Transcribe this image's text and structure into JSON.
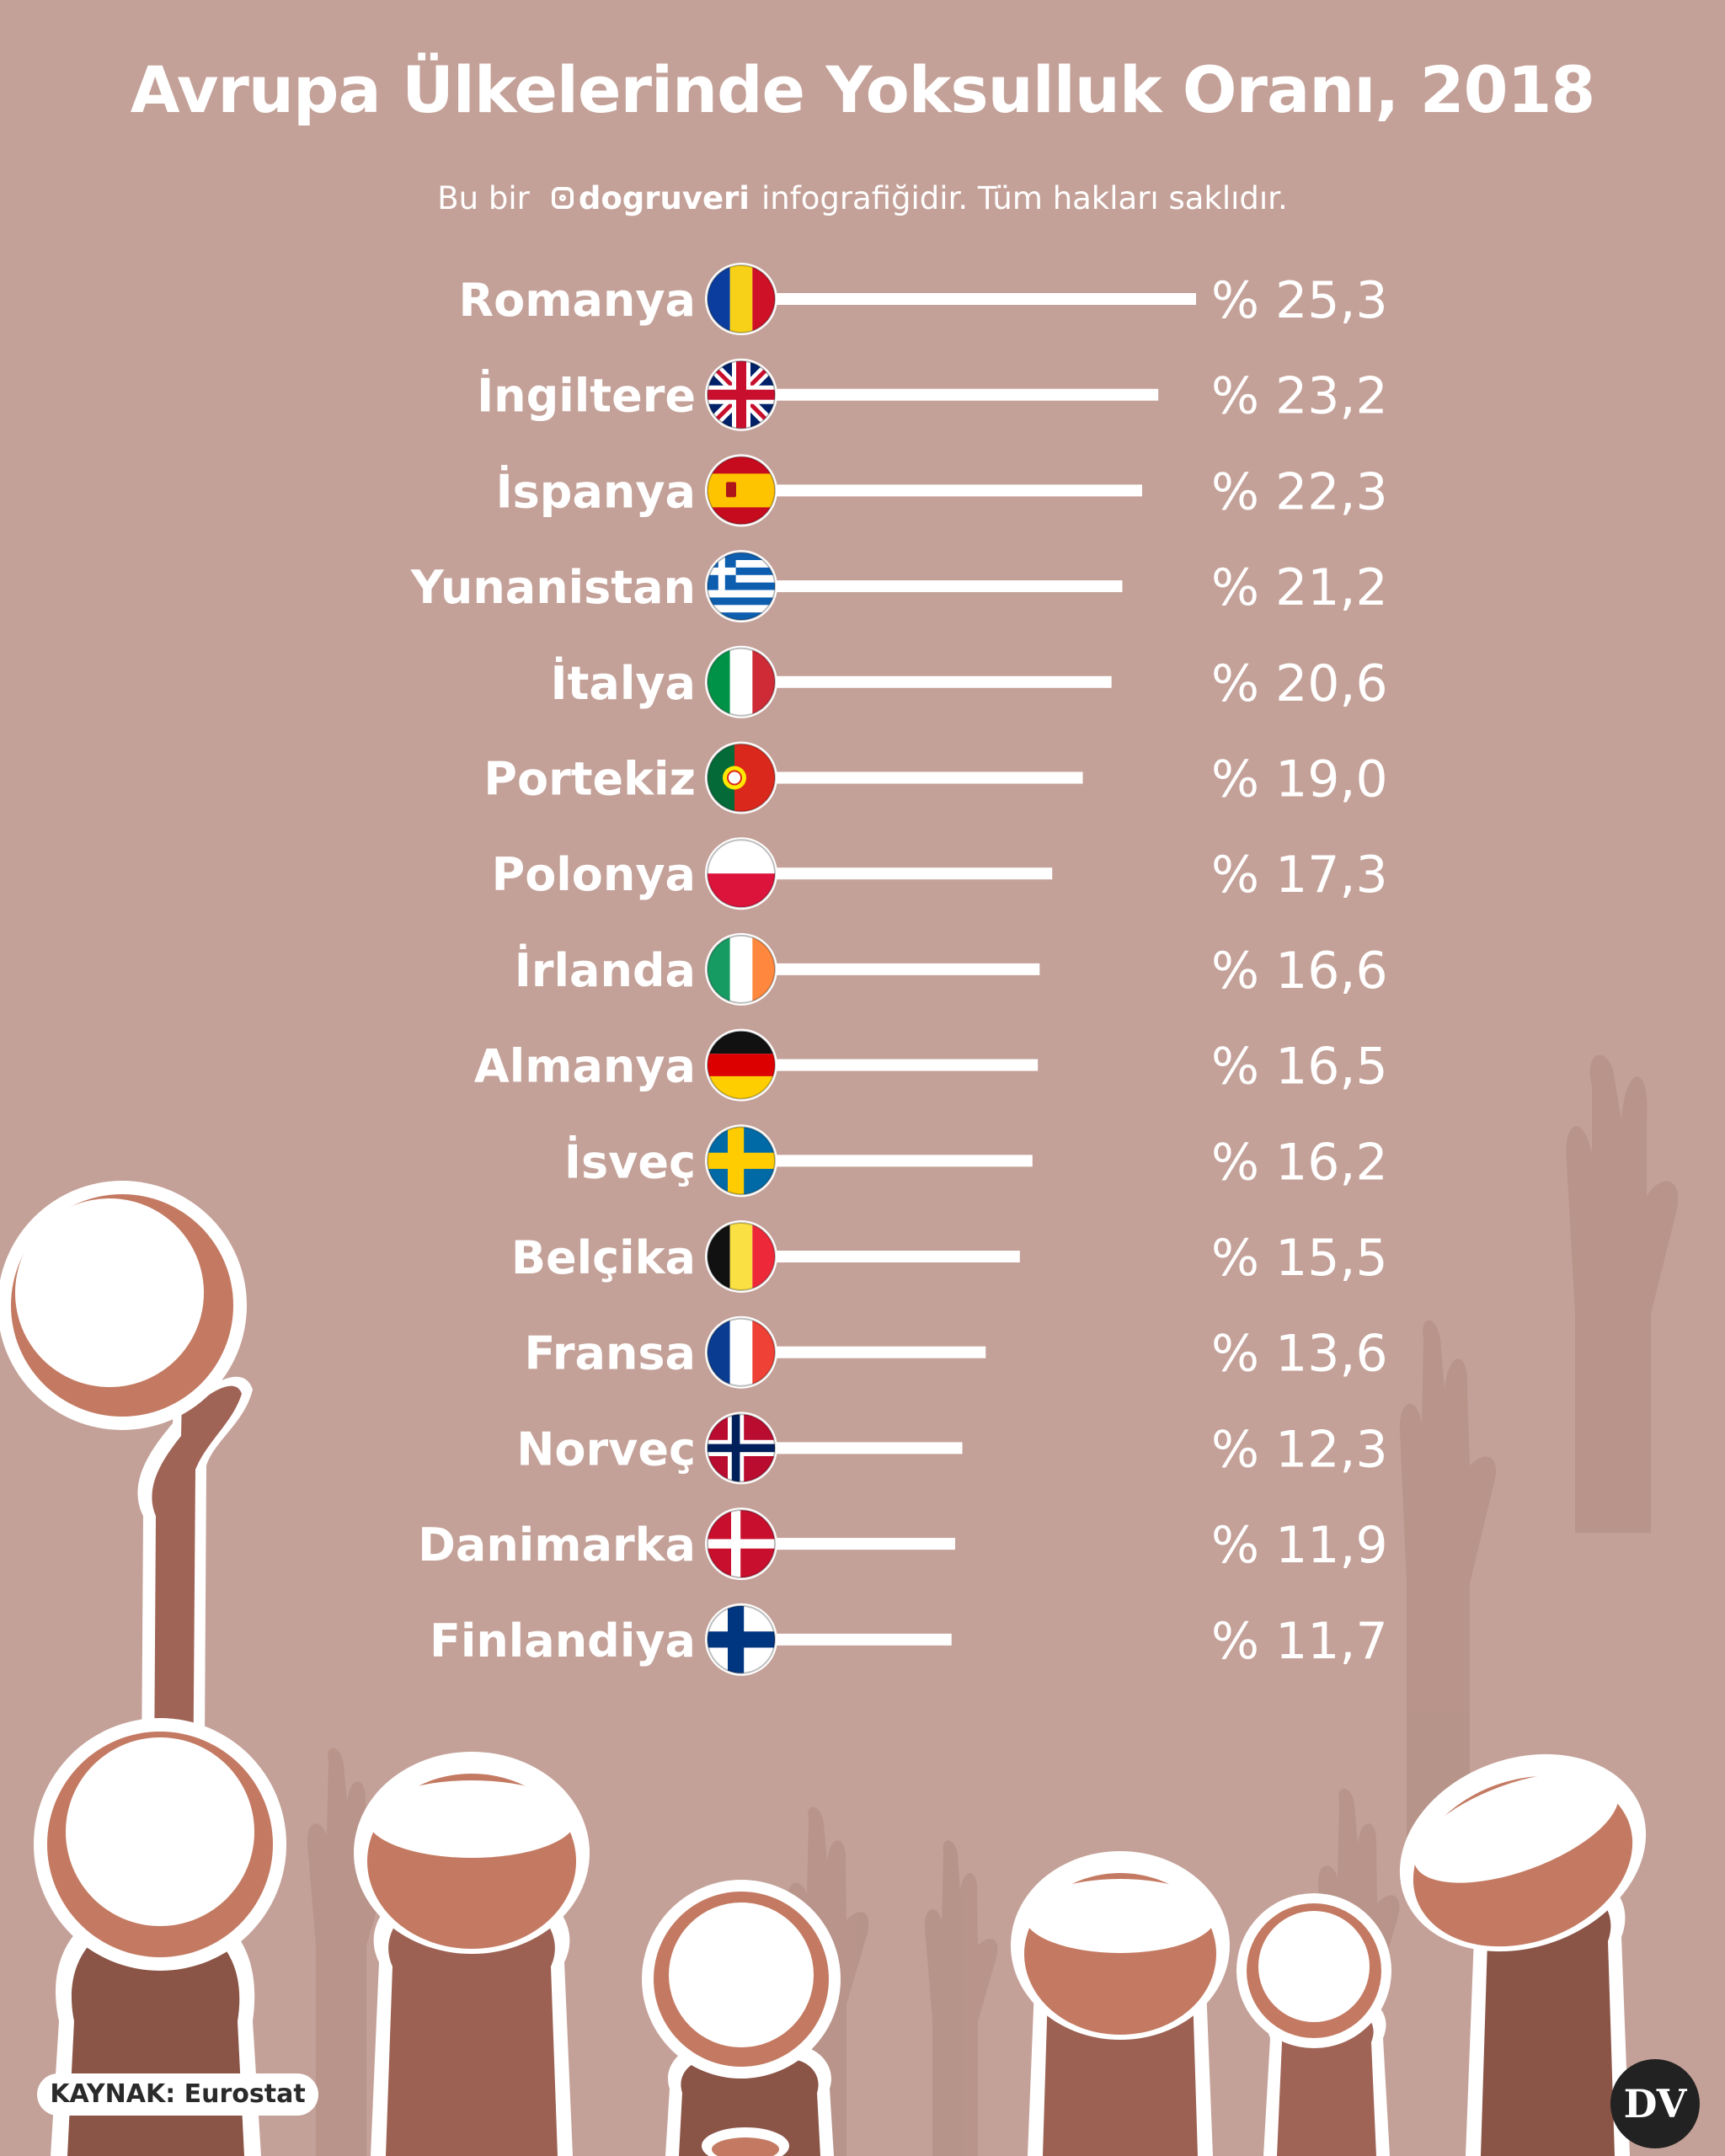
{
  "title": "Avrupa Ülkelerinde Yoksulluk Oranı, 2018",
  "subtitle": {
    "prefix": "Bu bir",
    "handle": "dogruveri",
    "suffix": "infografiğidir. Tüm hakları saklıdır."
  },
  "source": "KAYNAK: Eurostat",
  "logo_text": "DV",
  "colors": {
    "background": "#c4a198",
    "bar": "#ffffff",
    "text": "#ffffff"
  },
  "chart_data": {
    "type": "bar",
    "orientation": "horizontal",
    "title": "Avrupa Ülkelerinde Yoksulluk Oranı, 2018",
    "xlim": [
      0,
      25.3
    ],
    "grid": false,
    "categories": [
      "Romanya",
      "İngiltere",
      "İspanya",
      "Yunanistan",
      "İtalya",
      "Portekiz",
      "Polonya",
      "İrlanda",
      "Almanya",
      "İsveç",
      "Belçika",
      "Fransa",
      "Norveç",
      "Danimarka",
      "Finlandiya"
    ],
    "values": [
      25.3,
      23.2,
      22.3,
      21.2,
      20.6,
      19.0,
      17.3,
      16.6,
      16.5,
      16.2,
      15.5,
      13.6,
      12.3,
      11.9,
      11.7
    ],
    "value_labels": [
      "% 25,3",
      "% 23,2",
      "% 22,3",
      "% 21,2",
      "% 20,6",
      "% 19,0",
      "% 17,3",
      "% 16,6",
      "% 16,5",
      "% 16,2",
      "% 15,5",
      "% 13,6",
      "% 12,3",
      "% 11,9",
      "% 11,7"
    ],
    "flags": [
      "romania",
      "uk",
      "spain",
      "greece",
      "italy",
      "portugal",
      "poland",
      "ireland",
      "germany",
      "sweden",
      "belgium",
      "france",
      "norway",
      "denmark",
      "finland"
    ]
  }
}
